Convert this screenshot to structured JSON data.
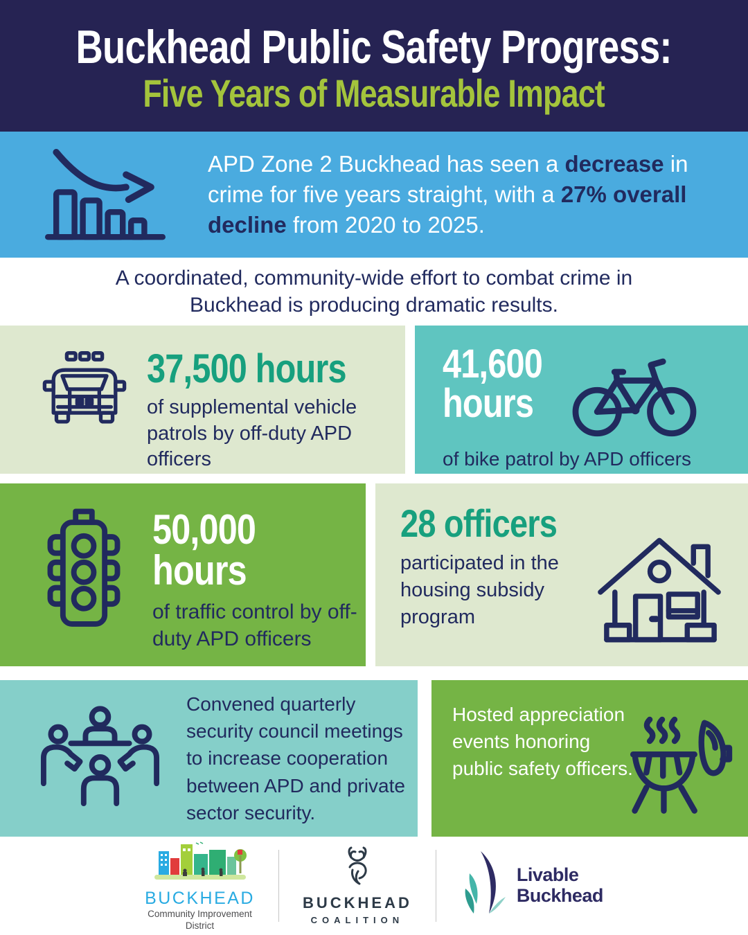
{
  "header": {
    "title_line1": "Buckhead Public Safety Progress:",
    "title_line2": "Five Years of Measurable Impact"
  },
  "intro": {
    "icon": "declining-bar-chart-arrow",
    "segments": [
      {
        "text": "APD Zone 2 Buckhead has seen a ",
        "bold": false
      },
      {
        "text": "decrease",
        "bold": true
      },
      {
        "text": " in crime for five years straight, with a ",
        "bold": false
      },
      {
        "text": "27% overall decline",
        "bold": true
      },
      {
        "text": " from 2020 to 2025.",
        "bold": false
      }
    ]
  },
  "tagline": "A coordinated, community-wide effort to combat crime in Buckhead is producing dramatic results.",
  "cards": [
    {
      "id": "vehicle-patrols",
      "icon": "police-car-icon",
      "stat": "37,500 hours",
      "description": "of supplemental vehicle patrols by off-duty APD officers"
    },
    {
      "id": "bike-patrol",
      "icon": "bicycle-icon",
      "stat_line1": "41,600",
      "stat_line2": "hours",
      "description": "of bike patrol by APD officers"
    },
    {
      "id": "traffic-control",
      "icon": "traffic-light-icon",
      "stat_line1": "50,000",
      "stat_line2": "hours",
      "description": "of traffic control by off-duty APD officers"
    },
    {
      "id": "housing-subsidy",
      "icon": "house-icon",
      "stat": "28 officers",
      "description": "participated in the housing subsidy program"
    },
    {
      "id": "security-council",
      "icon": "meeting-table-icon",
      "description": "Convened quarterly security council meetings to increase cooperation between APD and private sector security."
    },
    {
      "id": "appreciation-events",
      "icon": "bbq-grill-icon",
      "description": "Hosted appreciation events honoring public safety officers."
    }
  ],
  "footer": {
    "logos": [
      {
        "name": "Buckhead Community Improvement District",
        "word": "BUCKHEAD",
        "sub_line1": "Community Improvement",
        "sub_line2": "District"
      },
      {
        "name": "Buckhead Coalition",
        "word": "BUCKHEAD",
        "sub": "COALITION"
      },
      {
        "name": "Livable Buckhead",
        "line1": "Livable",
        "line2": "Buckhead"
      }
    ]
  },
  "colors": {
    "header_navy": "#262353",
    "accent_navy": "#212a5e",
    "intro_blue": "#4aabdf",
    "headline_green": "#a4c43c",
    "card_sage": "#dee8cf",
    "card_teal": "#5fc5c0",
    "card_teal_light": "#85cfc9",
    "card_green": "#75b445",
    "stat_teal": "#17a07e",
    "cid_blue": "#29abe2",
    "coalition_dark": "#2d3a47",
    "livable_navy": "#2e2b63"
  }
}
